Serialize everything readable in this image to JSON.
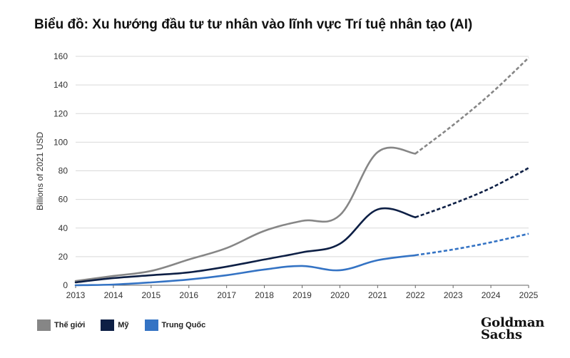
{
  "title": "Biểu đồ: Xu hướng đầu tư tư nhân vào lĩnh vực Trí tuệ nhân tạo (AI)",
  "brand": {
    "line1": "Goldman",
    "line2": "Sachs"
  },
  "chart_data": {
    "type": "line",
    "ylabel": "Billions of 2021 USD",
    "xlabel": "",
    "ylim": [
      0,
      160
    ],
    "yticks": [
      0,
      20,
      40,
      60,
      80,
      100,
      120,
      140,
      160
    ],
    "x": [
      2013,
      2014,
      2015,
      2016,
      2017,
      2018,
      2019,
      2020,
      2021,
      2022,
      2023,
      2024,
      2025
    ],
    "grid": "horizontal",
    "legend_position": "bottom-left",
    "forecast_start": 2022,
    "series": [
      {
        "name": "Thế giới",
        "color": "#868686",
        "values": [
          3,
          6.5,
          10,
          18,
          26,
          38,
          45,
          49,
          93,
          92,
          112,
          134,
          159
        ],
        "style_actual": "solid",
        "style_forecast": "dashed"
      },
      {
        "name": "Mỹ",
        "color": "#0d1f45",
        "values": [
          2,
          5,
          7,
          9,
          13,
          18,
          23,
          29,
          53,
          47.5,
          57,
          68,
          82
        ],
        "style_actual": "solid",
        "style_forecast": "dashed"
      },
      {
        "name": "Trung Quốc",
        "color": "#3473c4",
        "values": [
          0,
          0.5,
          2,
          4,
          7,
          11,
          13.5,
          10.5,
          17.5,
          21,
          25,
          30,
          36
        ],
        "style_actual": "solid",
        "style_forecast": "dashed"
      }
    ]
  }
}
